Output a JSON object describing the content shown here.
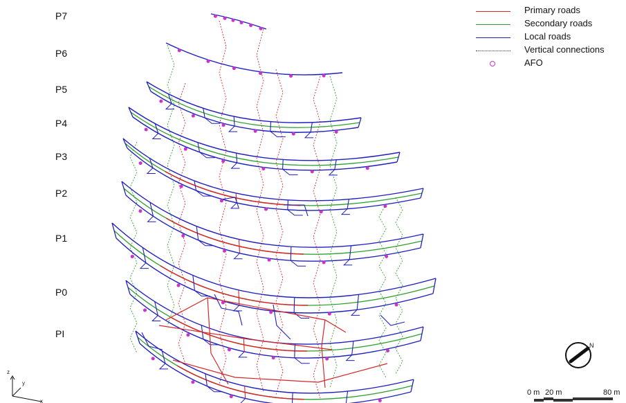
{
  "levels": [
    "P7",
    "P6",
    "P5",
    "P4",
    "P3",
    "P2",
    "P1",
    "P0",
    "PI"
  ],
  "legend": {
    "items": [
      {
        "label": "Primary roads",
        "color": "#d62728",
        "style": "solid"
      },
      {
        "label": "Secondary roads",
        "color": "#2ca02c",
        "style": "solid"
      },
      {
        "label": "Local roads",
        "color": "#1f1fbf",
        "style": "solid"
      },
      {
        "label": "Vertical connections",
        "color": "#333333",
        "style": "dotted"
      },
      {
        "label": "AFO",
        "color": "#cc33cc",
        "style": "circle"
      }
    ]
  },
  "compass": {
    "label": "N"
  },
  "scalebar": {
    "labels": [
      "0 m",
      "20 m",
      "80 m"
    ]
  },
  "axes": {
    "z": "z",
    "y": "y",
    "x": "x"
  },
  "colors": {
    "primary": "#d62728",
    "secondary": "#2ca02c",
    "local": "#1f1fbf",
    "afo": "#cc33cc",
    "vertical_red": "#d62728",
    "vertical_green": "#2ca02c"
  }
}
